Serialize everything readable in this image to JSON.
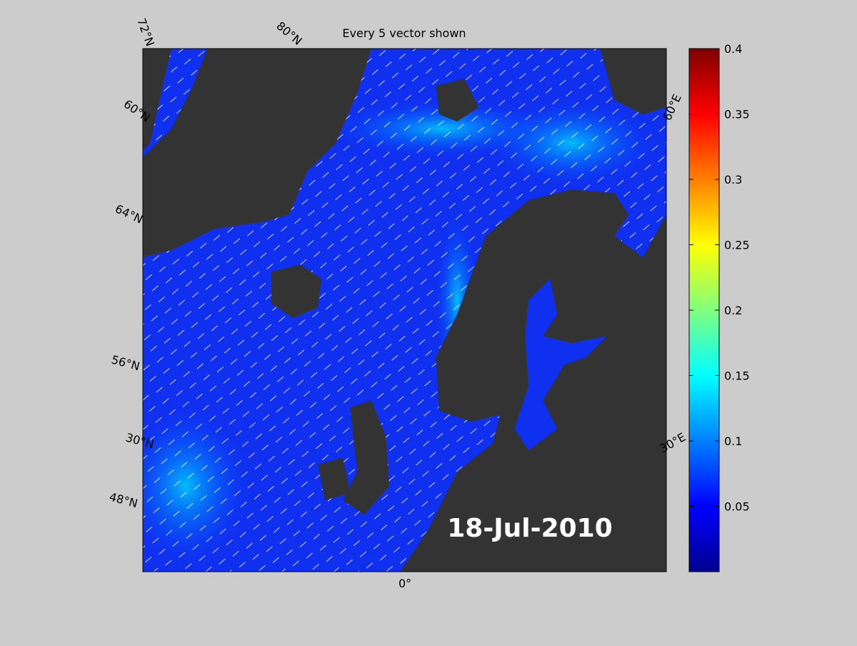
{
  "title": "Every 5 vector shown",
  "date": "18-Jul-2010",
  "graticule_labels": [
    "72°N",
    "80°N",
    "60°N",
    "64°N",
    "56°N",
    "30°N",
    "48°N",
    "60°E",
    "30°E",
    "0°"
  ],
  "colorbar": {
    "lim": [
      0,
      0.4
    ],
    "ticks": [
      0.05,
      0.1,
      0.15,
      0.2,
      0.25,
      0.3,
      0.35,
      0.4
    ]
  }
}
